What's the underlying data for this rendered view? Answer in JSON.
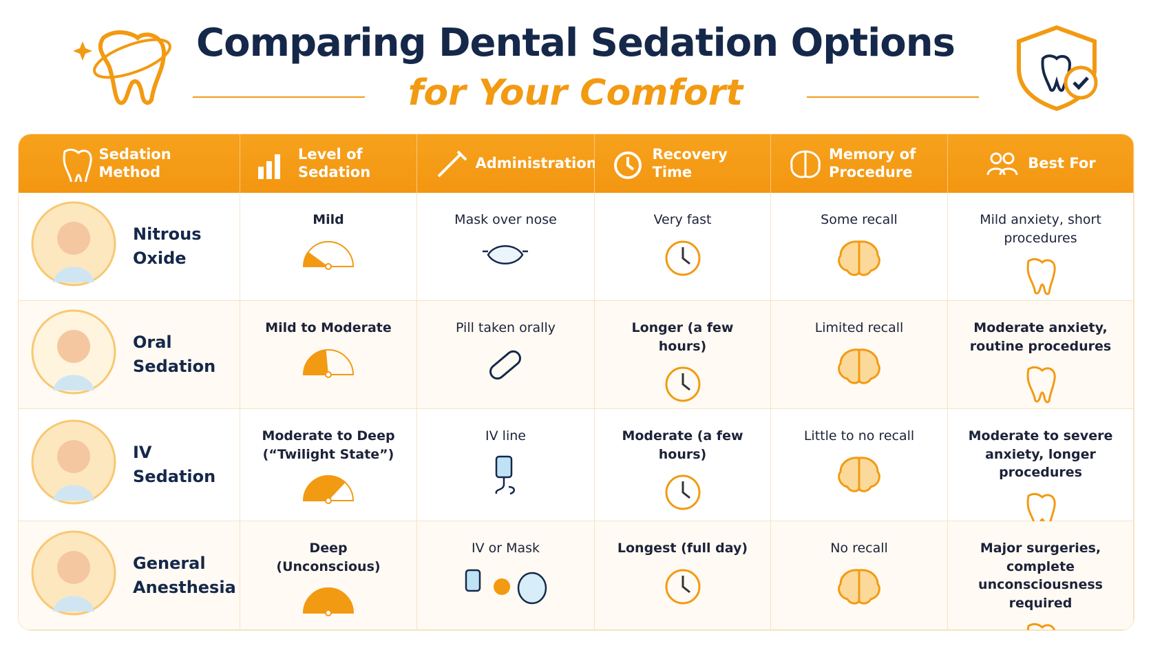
{
  "header": {
    "title": "Comparing Dental Sedation Options",
    "subtitle": "for Your Comfort"
  },
  "table": {
    "columns": [
      "Sedation Method",
      "Level of Sedation",
      "Administration",
      "Recovery Time",
      "Memory of Procedure",
      "Best For"
    ],
    "rows": [
      [
        "Nitrous Oxide",
        "Mild",
        "Mask over nose",
        "Very fast",
        "Some recall",
        "Mild anxiety, short procedures"
      ],
      [
        "Oral Sedation",
        "Mild to Moderate",
        "Pill taken orally",
        "Longer (a few hours)",
        "Limited recall",
        "Moderate anxiety, routine procedures"
      ],
      [
        "IV Sedation",
        "Moderate to Deep (“Twilight State”)",
        "IV line",
        "Moderate (a few hours)",
        "Little to no recall",
        "Moderate to severe anxiety, longer procedures"
      ],
      [
        "General Anesthesia",
        "Deep (Unconscious)",
        "IV or Mask",
        "Longest (full day)",
        "No recall",
        "Major surgeries, complete unconsciousness required"
      ]
    ]
  }
}
